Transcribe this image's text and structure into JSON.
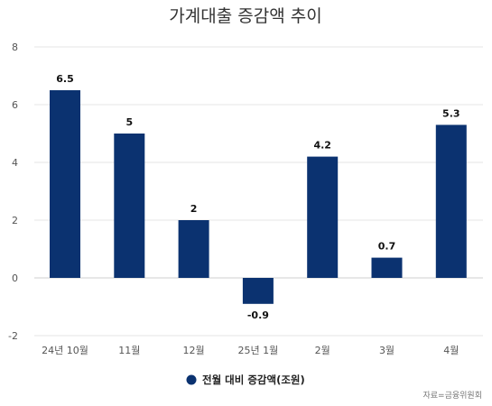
{
  "chart_data": {
    "type": "bar",
    "title": "가계대출 증감액 추이",
    "categories": [
      "24년 10월",
      "11월",
      "12월",
      "25년 1월",
      "2월",
      "3월",
      "4월"
    ],
    "series": [
      {
        "name": "전월 대비 증감액(조원)",
        "values": [
          6.5,
          5,
          2,
          -0.9,
          4.2,
          0.7,
          5.3
        ],
        "color": "#0b3270"
      }
    ],
    "ylim": [
      -2,
      8
    ],
    "yticks": [
      -2,
      0,
      2,
      4,
      6,
      8
    ],
    "grid": true,
    "legend_position": "bottom-center",
    "source": "자료=금융위원회"
  }
}
